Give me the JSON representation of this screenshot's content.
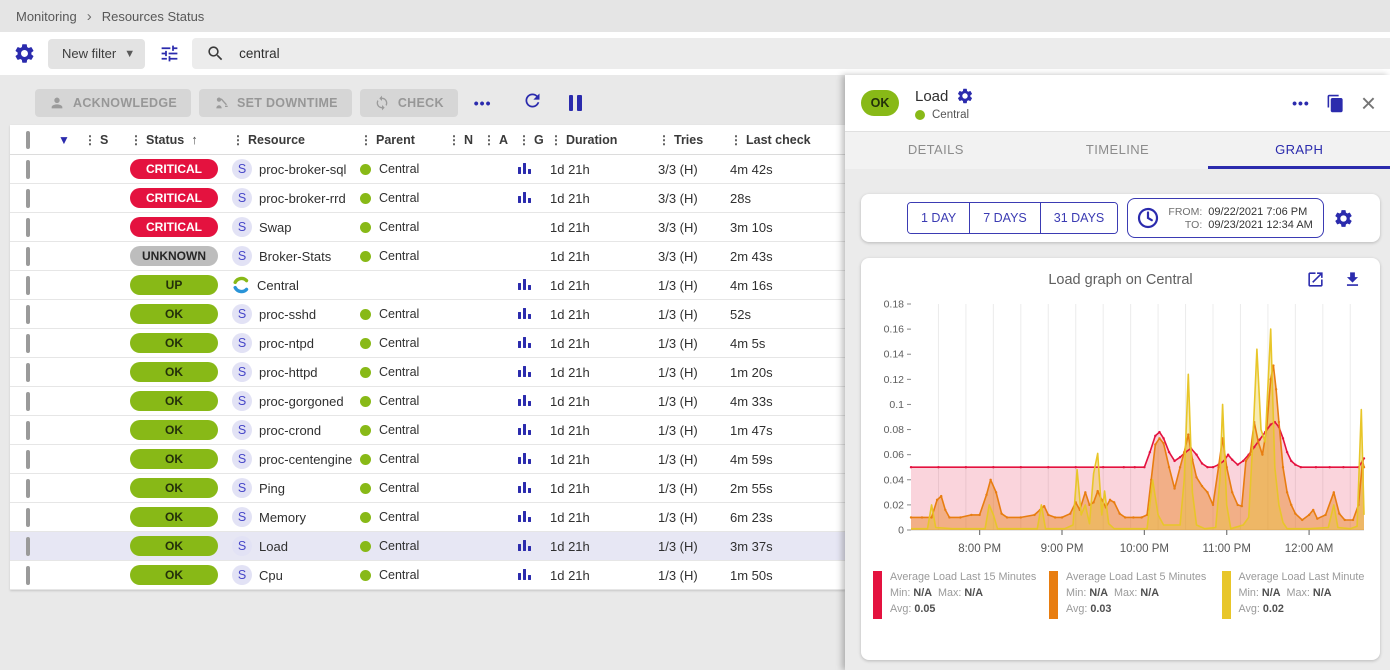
{
  "colors": {
    "accent": "#2b2bad",
    "ok_green": "#88b917",
    "critical_red": "#e4123f",
    "unknown_gray": "#bdbdbd"
  },
  "breadcrumb": {
    "items": [
      "Monitoring",
      "Resources Status"
    ]
  },
  "filter": {
    "new_filter_label": "New filter",
    "search_value": "central"
  },
  "toolbar": {
    "acknowledge": "ACKNOWLEDGE",
    "set_downtime": "SET DOWNTIME",
    "check": "CHECK",
    "more_label": "•••"
  },
  "table": {
    "columns": [
      "S",
      "Status",
      "Resource",
      "Parent",
      "N",
      "A",
      "G",
      "Duration",
      "Tries",
      "Last check"
    ],
    "sorted_column": "Status",
    "rows": [
      {
        "status": "CRITICAL",
        "type": "service",
        "resource": "proc-broker-sql",
        "parent": "Central",
        "graph": true,
        "duration": "1d 21h",
        "tries": "3/3 (H)",
        "last_check": "4m 42s",
        "selected": false
      },
      {
        "status": "CRITICAL",
        "type": "service",
        "resource": "proc-broker-rrd",
        "parent": "Central",
        "graph": true,
        "duration": "1d 21h",
        "tries": "3/3 (H)",
        "last_check": "28s",
        "selected": false
      },
      {
        "status": "CRITICAL",
        "type": "service",
        "resource": "Swap",
        "parent": "Central",
        "graph": false,
        "duration": "1d 21h",
        "tries": "3/3 (H)",
        "last_check": "3m 10s",
        "selected": false
      },
      {
        "status": "UNKNOWN",
        "type": "service",
        "resource": "Broker-Stats",
        "parent": "Central",
        "graph": false,
        "duration": "1d 21h",
        "tries": "3/3 (H)",
        "last_check": "2m 43s",
        "selected": false
      },
      {
        "status": "UP",
        "type": "host",
        "resource": "Central",
        "parent": null,
        "graph": true,
        "duration": "1d 21h",
        "tries": "1/3 (H)",
        "last_check": "4m 16s",
        "selected": false
      },
      {
        "status": "OK",
        "type": "service",
        "resource": "proc-sshd",
        "parent": "Central",
        "graph": true,
        "duration": "1d 21h",
        "tries": "1/3 (H)",
        "last_check": "52s",
        "selected": false
      },
      {
        "status": "OK",
        "type": "service",
        "resource": "proc-ntpd",
        "parent": "Central",
        "graph": true,
        "duration": "1d 21h",
        "tries": "1/3 (H)",
        "last_check": "4m 5s",
        "selected": false
      },
      {
        "status": "OK",
        "type": "service",
        "resource": "proc-httpd",
        "parent": "Central",
        "graph": true,
        "duration": "1d 21h",
        "tries": "1/3 (H)",
        "last_check": "1m 20s",
        "selected": false
      },
      {
        "status": "OK",
        "type": "service",
        "resource": "proc-gorgoned",
        "parent": "Central",
        "graph": true,
        "duration": "1d 21h",
        "tries": "1/3 (H)",
        "last_check": "4m 33s",
        "selected": false
      },
      {
        "status": "OK",
        "type": "service",
        "resource": "proc-crond",
        "parent": "Central",
        "graph": true,
        "duration": "1d 21h",
        "tries": "1/3 (H)",
        "last_check": "1m 47s",
        "selected": false
      },
      {
        "status": "OK",
        "type": "service",
        "resource": "proc-centengine",
        "parent": "Central",
        "graph": true,
        "duration": "1d 21h",
        "tries": "1/3 (H)",
        "last_check": "4m 59s",
        "selected": false
      },
      {
        "status": "OK",
        "type": "service",
        "resource": "Ping",
        "parent": "Central",
        "graph": true,
        "duration": "1d 21h",
        "tries": "1/3 (H)",
        "last_check": "2m 55s",
        "selected": false
      },
      {
        "status": "OK",
        "type": "service",
        "resource": "Memory",
        "parent": "Central",
        "graph": true,
        "duration": "1d 21h",
        "tries": "1/3 (H)",
        "last_check": "6m 23s",
        "selected": false
      },
      {
        "status": "OK",
        "type": "service",
        "resource": "Load",
        "parent": "Central",
        "graph": true,
        "duration": "1d 21h",
        "tries": "1/3 (H)",
        "last_check": "3m 37s",
        "selected": true
      },
      {
        "status": "OK",
        "type": "service",
        "resource": "Cpu",
        "parent": "Central",
        "graph": true,
        "duration": "1d 21h",
        "tries": "1/3 (H)",
        "last_check": "1m 50s",
        "selected": false
      }
    ]
  },
  "panel": {
    "header": {
      "status": "OK",
      "title": "Load",
      "parent": "Central"
    },
    "tabs": [
      {
        "label": "DETAILS",
        "active": false
      },
      {
        "label": "TIMELINE",
        "active": false
      },
      {
        "label": "GRAPH",
        "active": true
      }
    ],
    "range": {
      "presets": [
        "1 DAY",
        "7 DAYS",
        "31 DAYS"
      ],
      "from_label": "FROM:",
      "from_value": "09/22/2021 7:06 PM",
      "to_label": "TO:",
      "to_value": "09/23/2021 12:34 AM"
    }
  },
  "chart_data": {
    "type": "area",
    "title": "Load graph on Central",
    "x_axis": "time (minutes after 7:10 PM, 09/22/2021)",
    "xlim": [
      0,
      330
    ],
    "ylim": [
      0,
      0.18
    ],
    "y_ticks": [
      0,
      0.02,
      0.04,
      0.06,
      0.08,
      0.1,
      0.12,
      0.14,
      0.16,
      0.18
    ],
    "x_ticks": [
      {
        "t": 50,
        "label": "8:00 PM"
      },
      {
        "t": 110,
        "label": "9:00 PM"
      },
      {
        "t": 170,
        "label": "10:00 PM"
      },
      {
        "t": 230,
        "label": "11:00 PM"
      },
      {
        "t": 290,
        "label": "12:00 AM"
      }
    ],
    "grid_interval_minutes": 20,
    "series": [
      {
        "name": "Average Load Last 15 Minutes",
        "color": "#e4123f",
        "fill_opacity": 0.18,
        "markers": true,
        "points": [
          [
            0,
            0.05
          ],
          [
            20,
            0.05
          ],
          [
            40,
            0.05
          ],
          [
            60,
            0.05
          ],
          [
            80,
            0.05
          ],
          [
            100,
            0.05
          ],
          [
            120,
            0.05
          ],
          [
            140,
            0.05
          ],
          [
            155,
            0.05
          ],
          [
            163,
            0.05
          ],
          [
            170,
            0.05
          ],
          [
            174,
            0.062
          ],
          [
            178,
            0.075
          ],
          [
            181,
            0.078
          ],
          [
            184,
            0.073
          ],
          [
            188,
            0.062
          ],
          [
            192,
            0.055
          ],
          [
            196,
            0.058
          ],
          [
            200,
            0.062
          ],
          [
            204,
            0.065
          ],
          [
            208,
            0.06
          ],
          [
            212,
            0.053
          ],
          [
            216,
            0.05
          ],
          [
            220,
            0.05
          ],
          [
            224,
            0.052
          ],
          [
            228,
            0.055
          ],
          [
            231,
            0.06
          ],
          [
            234,
            0.056
          ],
          [
            238,
            0.052
          ],
          [
            242,
            0.055
          ],
          [
            246,
            0.06
          ],
          [
            250,
            0.066
          ],
          [
            254,
            0.072
          ],
          [
            258,
            0.078
          ],
          [
            262,
            0.084
          ],
          [
            265,
            0.086
          ],
          [
            268,
            0.082
          ],
          [
            271,
            0.073
          ],
          [
            274,
            0.062
          ],
          [
            277,
            0.055
          ],
          [
            280,
            0.052
          ],
          [
            284,
            0.05
          ],
          [
            295,
            0.05
          ],
          [
            305,
            0.05
          ],
          [
            315,
            0.05
          ],
          [
            326,
            0.05
          ],
          [
            329,
            0.055
          ],
          [
            330,
            0.057
          ]
        ]
      },
      {
        "name": "Average Load Last 5 Minutes",
        "color": "#e87d10",
        "fill_opacity": 0.42,
        "markers": true,
        "points": [
          [
            0,
            0.01
          ],
          [
            8,
            0.01
          ],
          [
            15,
            0.01
          ],
          [
            19,
            0.024
          ],
          [
            22,
            0.027
          ],
          [
            25,
            0.016
          ],
          [
            28,
            0.01
          ],
          [
            36,
            0.01
          ],
          [
            44,
            0.012
          ],
          [
            50,
            0.012
          ],
          [
            55,
            0.028
          ],
          [
            58,
            0.04
          ],
          [
            62,
            0.03
          ],
          [
            66,
            0.013
          ],
          [
            70,
            0.01
          ],
          [
            80,
            0.01
          ],
          [
            90,
            0.012
          ],
          [
            94,
            0.016
          ],
          [
            97,
            0.019
          ],
          [
            100,
            0.012
          ],
          [
            105,
            0.01
          ],
          [
            110,
            0.01
          ],
          [
            116,
            0.013
          ],
          [
            120,
            0.022
          ],
          [
            123,
            0.016
          ],
          [
            127,
            0.03
          ],
          [
            130,
            0.02
          ],
          [
            133,
            0.022
          ],
          [
            136,
            0.031
          ],
          [
            139,
            0.024
          ],
          [
            142,
            0.018
          ],
          [
            145,
            0.024
          ],
          [
            148,
            0.022
          ],
          [
            152,
            0.013
          ],
          [
            156,
            0.01
          ],
          [
            162,
            0.01
          ],
          [
            168,
            0.01
          ],
          [
            172,
            0.012
          ],
          [
            175,
            0.04
          ],
          [
            178,
            0.068
          ],
          [
            181,
            0.073
          ],
          [
            184,
            0.069
          ],
          [
            188,
            0.05
          ],
          [
            192,
            0.033
          ],
          [
            196,
            0.05
          ],
          [
            199,
            0.062
          ],
          [
            202,
            0.076
          ],
          [
            205,
            0.056
          ],
          [
            208,
            0.042
          ],
          [
            212,
            0.035
          ],
          [
            216,
            0.03
          ],
          [
            220,
            0.02
          ],
          [
            224,
            0.05
          ],
          [
            227,
            0.073
          ],
          [
            230,
            0.05
          ],
          [
            234,
            0.03
          ],
          [
            238,
            0.02
          ],
          [
            241,
            0.019
          ],
          [
            244,
            0.055
          ],
          [
            247,
            0.06
          ],
          [
            250,
            0.086
          ],
          [
            253,
            0.07
          ],
          [
            256,
            0.06
          ],
          [
            259,
            0.08
          ],
          [
            262,
            0.12
          ],
          [
            264,
            0.131
          ],
          [
            266,
            0.112
          ],
          [
            268,
            0.086
          ],
          [
            271,
            0.05
          ],
          [
            274,
            0.03
          ],
          [
            277,
            0.02
          ],
          [
            280,
            0.013
          ],
          [
            285,
            0.008
          ],
          [
            290,
            0.012
          ],
          [
            293,
            0.016
          ],
          [
            296,
            0.009
          ],
          [
            302,
            0.012
          ],
          [
            308,
            0.03
          ],
          [
            312,
            0.013
          ],
          [
            316,
            0.008
          ],
          [
            322,
            0.008
          ],
          [
            326,
            0.02
          ],
          [
            329,
            0.055
          ],
          [
            330,
            0.05
          ]
        ]
      },
      {
        "name": "Average Load Last Minute",
        "color": "#e8c629",
        "fill_opacity": 0.35,
        "markers": false,
        "points": [
          [
            0,
            0.001
          ],
          [
            12,
            0.001
          ],
          [
            15,
            0.02
          ],
          [
            18,
            0.002
          ],
          [
            30,
            0.001
          ],
          [
            54,
            0.001
          ],
          [
            57,
            0.02
          ],
          [
            60,
            0.012
          ],
          [
            63,
            0.001
          ],
          [
            80,
            0.001
          ],
          [
            92,
            0.001
          ],
          [
            95,
            0.02
          ],
          [
            98,
            0.001
          ],
          [
            112,
            0.001
          ],
          [
            118,
            0.004
          ],
          [
            121,
            0.048
          ],
          [
            124,
            0.012
          ],
          [
            127,
            0.02
          ],
          [
            130,
            0.005
          ],
          [
            133,
            0.045
          ],
          [
            136,
            0.061
          ],
          [
            139,
            0.012
          ],
          [
            141,
            0.031
          ],
          [
            144,
            0.005
          ],
          [
            148,
            0.001
          ],
          [
            160,
            0.001
          ],
          [
            172,
            0.001
          ],
          [
            176,
            0.04
          ],
          [
            180,
            0.012
          ],
          [
            184,
            0.004
          ],
          [
            196,
            0.004
          ],
          [
            199,
            0.04
          ],
          [
            202,
            0.124
          ],
          [
            205,
            0.03
          ],
          [
            208,
            0.004
          ],
          [
            214,
            0.001
          ],
          [
            222,
            0.002
          ],
          [
            225,
            0.04
          ],
          [
            227,
            0.1
          ],
          [
            230,
            0.02
          ],
          [
            233,
            0.001
          ],
          [
            242,
            0.004
          ],
          [
            246,
            0.01
          ],
          [
            249,
            0.07
          ],
          [
            252,
            0.144
          ],
          [
            255,
            0.08
          ],
          [
            258,
            0.07
          ],
          [
            262,
            0.16
          ],
          [
            265,
            0.05
          ],
          [
            268,
            0.02
          ],
          [
            271,
            0.006
          ],
          [
            274,
            0.001
          ],
          [
            290,
            0.001
          ],
          [
            304,
            0.002
          ],
          [
            308,
            0.02
          ],
          [
            311,
            0.002
          ],
          [
            320,
            0.001
          ],
          [
            325,
            0.003
          ],
          [
            328,
            0.096
          ],
          [
            330,
            0.012
          ]
        ]
      }
    ],
    "legend": [
      {
        "color": "#e4123f",
        "label": "Average Load Last 15 Minutes",
        "min_label": "Min:",
        "min": "N/A",
        "max_label": "Max:",
        "max": "N/A",
        "avg_label": "Avg:",
        "avg": "0.05"
      },
      {
        "color": "#e87d10",
        "label": "Average Load Last 5 Minutes",
        "min_label": "Min:",
        "min": "N/A",
        "max_label": "Max:",
        "max": "N/A",
        "avg_label": "Avg:",
        "avg": "0.03"
      },
      {
        "color": "#e8c629",
        "label": "Average Load Last Minute",
        "min_label": "Min:",
        "min": "N/A",
        "max_label": "Max:",
        "max": "N/A",
        "avg_label": "Avg:",
        "avg": "0.02"
      }
    ]
  }
}
